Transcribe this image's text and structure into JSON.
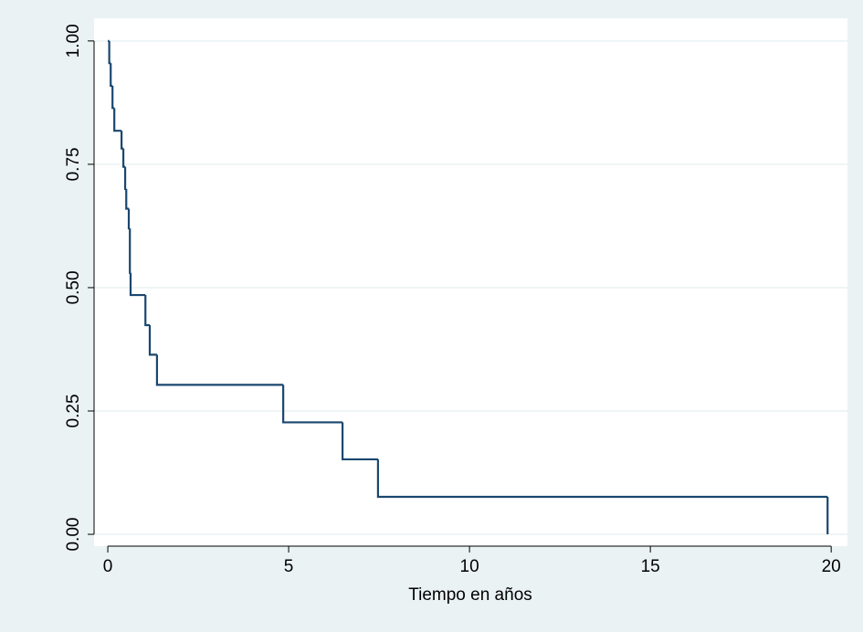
{
  "chart_data": {
    "type": "step",
    "xlabel": "Tiempo en años",
    "x": [
      0,
      0.04,
      0.08,
      0.13,
      0.18,
      0.38,
      0.43,
      0.48,
      0.51,
      0.58,
      0.61,
      0.63,
      1.04,
      1.16,
      1.36,
      4.85,
      6.49,
      7.47,
      19.9
    ],
    "values": [
      1.0,
      0.955,
      0.909,
      0.864,
      0.818,
      0.782,
      0.745,
      0.7,
      0.66,
      0.62,
      0.53,
      0.485,
      0.424,
      0.364,
      0.303,
      0.227,
      0.152,
      0.076,
      0
    ],
    "color": "#1a476f",
    "xlim": [
      -0.38,
      20.45
    ],
    "ylim": [
      -0.024,
      1.046
    ],
    "xticks": [
      0,
      5,
      10,
      15,
      20
    ],
    "yticks": [
      {
        "value": 0,
        "label": "0.00"
      },
      {
        "value": 0.25,
        "label": "0.25"
      },
      {
        "value": 0.5,
        "label": "0.50"
      },
      {
        "value": 0.75,
        "label": "0.75"
      },
      {
        "value": 1,
        "label": "1.00"
      }
    ],
    "grid": true
  }
}
